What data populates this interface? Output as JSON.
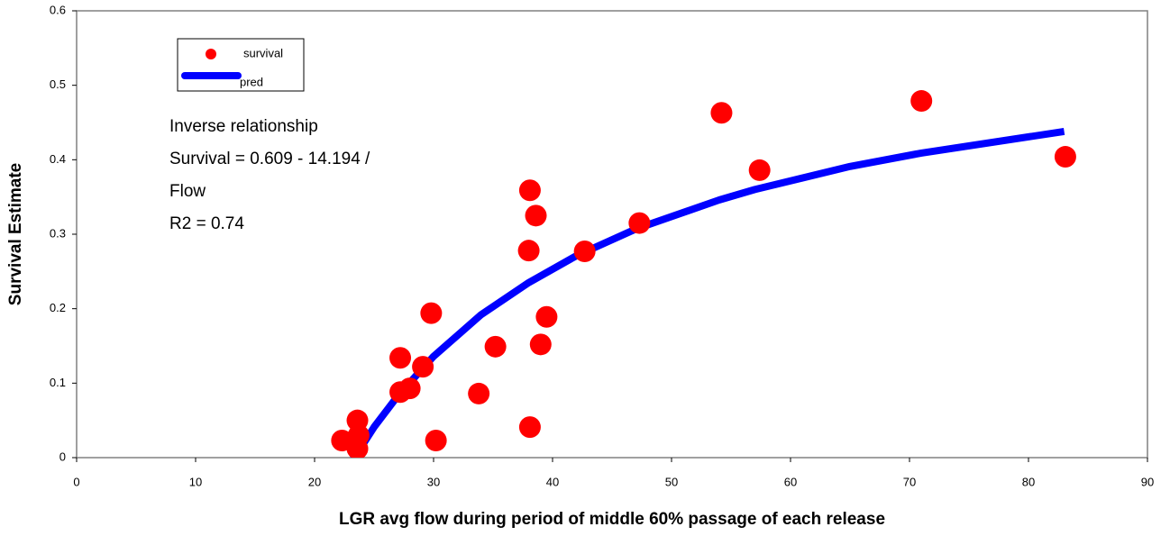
{
  "chart_data": {
    "type": "scatter",
    "x_label": "LGR avg flow during period of middle 60% passage of each release",
    "y_label": "Survival Estimate",
    "xlim": [
      0,
      90
    ],
    "xticks": [
      0,
      10,
      20,
      30,
      40,
      50,
      60,
      70,
      80,
      90
    ],
    "ylim": [
      0,
      0.6
    ],
    "yticks": [
      0,
      0.1,
      0.2,
      0.3,
      0.4,
      0.5,
      0.6
    ],
    "annotation": [
      "Inverse relationship",
      "Survival = 0.609 - 14.194 /",
      "Flow",
      "R2 = 0.74"
    ],
    "series": [
      {
        "name": "survival",
        "color": "#ff0000",
        "kind": "points",
        "x": [
          22.3,
          23.6,
          23.7,
          23.6,
          27.2,
          27.2,
          28.0,
          29.1,
          29.8,
          30.2,
          33.8,
          35.2,
          38.1,
          38.0,
          38.1,
          38.6,
          39.0,
          39.5,
          42.7,
          47.3,
          54.2,
          57.4,
          71.0,
          83.1
        ],
        "values": [
          0.023,
          0.05,
          0.03,
          0.012,
          0.134,
          0.088,
          0.093,
          0.122,
          0.194,
          0.023,
          0.086,
          0.149,
          0.041,
          0.278,
          0.359,
          0.325,
          0.152,
          0.189,
          0.277,
          0.315,
          0.463,
          0.386,
          0.479,
          0.404
        ]
      },
      {
        "name": "pred",
        "color": "#0000ff",
        "kind": "line",
        "x": [
          22.7,
          25,
          27,
          30,
          34,
          38,
          42,
          47,
          54,
          57,
          65,
          71,
          83
        ],
        "values": [
          -0.016,
          0.041,
          0.083,
          0.136,
          0.192,
          0.235,
          0.271,
          0.307,
          0.346,
          0.36,
          0.391,
          0.409,
          0.438
        ]
      }
    ]
  }
}
